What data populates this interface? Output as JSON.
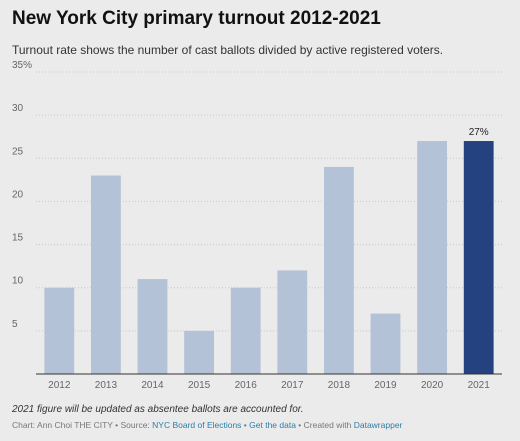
{
  "header": {
    "title": "New York City primary turnout 2012-2021",
    "subtitle": "Turnout rate shows the number of cast ballots divided by active registered voters."
  },
  "footer": {
    "note": "2021 figure will be updated as absentee ballots are accounted for.",
    "credit_prefix": "Chart: Ann Choi THE CITY • Source: ",
    "source_link": "NYC Board of Elections",
    "separator_1": " • ",
    "get_data_link": "Get the data",
    "separator_2": " • Created with ",
    "tool_link": "Datawrapper"
  },
  "colors": {
    "bar": "#b4c2d7",
    "highlight_bar": "#23427f",
    "grid": "#c8c8c8",
    "axis_text": "#666666"
  },
  "chart_data": {
    "type": "bar",
    "title": "New York City primary turnout 2012-2021",
    "subtitle": "Turnout rate shows the number of cast ballots divided by active registered voters.",
    "categories": [
      "2012",
      "2013",
      "2014",
      "2015",
      "2016",
      "2017",
      "2018",
      "2019",
      "2020",
      "2021"
    ],
    "values": [
      10,
      23,
      11,
      5,
      10,
      12,
      24,
      7,
      27,
      27
    ],
    "ylim": [
      0,
      35
    ],
    "yticks": [
      5,
      10,
      15,
      20,
      25,
      30,
      35
    ],
    "ytick_labels": [
      "5",
      "10",
      "15",
      "20",
      "25",
      "30",
      "35%"
    ],
    "highlight_index": 9,
    "data_labels": [
      {
        "index": 9,
        "text": "27%"
      }
    ],
    "grid": true,
    "legend": "none"
  }
}
